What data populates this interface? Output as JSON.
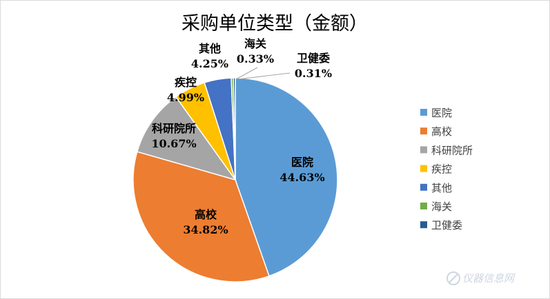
{
  "chart_data": {
    "type": "pie",
    "title": "采购单位类型（金额）",
    "start_angle_deg": 90,
    "direction": "clockwise",
    "slices": [
      {
        "name": "医院",
        "value": 44.63,
        "label": "44.63%",
        "color": "#5b9bd5"
      },
      {
        "name": "高校",
        "value": 34.82,
        "label": "34.82%",
        "color": "#ed7d31"
      },
      {
        "name": "科研院所",
        "value": 10.67,
        "label": "10.67%",
        "color": "#a5a5a5"
      },
      {
        "name": "疾控",
        "value": 4.99,
        "label": "4.99%",
        "color": "#ffc000"
      },
      {
        "name": "其他",
        "value": 4.25,
        "label": "4.25%",
        "color": "#4472c4"
      },
      {
        "name": "海关",
        "value": 0.33,
        "label": "0.33%",
        "color": "#70ad47"
      },
      {
        "name": "卫健委",
        "value": 0.31,
        "label": "0.31%",
        "color": "#255e91"
      }
    ],
    "legend_position": "right"
  },
  "watermark": "仪器信息网"
}
